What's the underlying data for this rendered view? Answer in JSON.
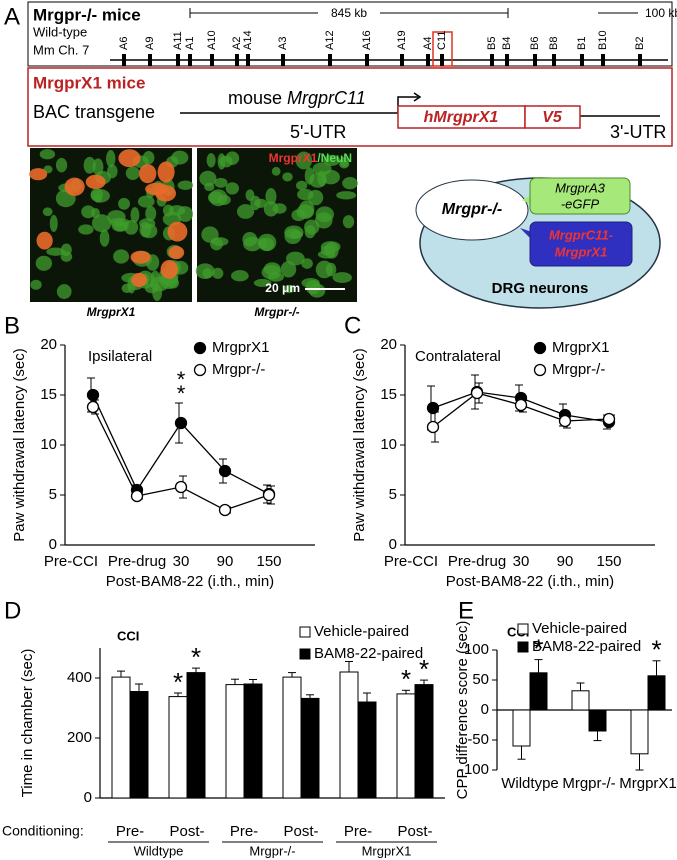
{
  "panel_a": {
    "panel_label": "A",
    "title": "Mrgpr-/-  mice",
    "scale_span": "845 kb",
    "scale_bar": "100 kb",
    "row_labels": [
      "Wild-type",
      "Mm Ch. 7"
    ],
    "genes": [
      "A6",
      "A9",
      "A11",
      "A1",
      "A10",
      "A2",
      "A14",
      "A3",
      "A12",
      "A16",
      "A19",
      "A4",
      "C11",
      "B5",
      "B4",
      "B6",
      "B8",
      "B1",
      "B10",
      "B2"
    ],
    "transgene": {
      "title": "MrgprX1  mice",
      "construct": "BAC transgene",
      "promoter_prefix": "mouse",
      "promoter_gene": "MrgprC11",
      "utr5": "5'-UTR",
      "insert": "hMrgprX1",
      "tag": "V5",
      "utr3": "3'-UTR"
    },
    "images": {
      "stain_red": "MrgprX1",
      "stain_green": "/NeuN",
      "scale": "20 μm",
      "captions": [
        "MrgprX1",
        "Mrgpr-/-"
      ]
    },
    "diagram": {
      "mouse": "Mrgpr-/-",
      "green": [
        "MrgprA3",
        "-eGFP"
      ],
      "blue": [
        "MrgprC11-",
        "MrgprX1"
      ],
      "cell": "DRG neurons"
    }
  },
  "chart_data": [
    {
      "type": "line",
      "panel_label": "B",
      "subtitle": "Ipsilateral",
      "categories": [
        "Pre-CCI",
        "Pre-drug",
        "30",
        "90",
        "150"
      ],
      "xlabel": "Post-BAM8-22 (i.th., min)",
      "ylabel": "Paw withdrawal latency (sec)",
      "ylim": [
        0,
        20
      ],
      "yticks": [
        0,
        5,
        10,
        15,
        20
      ],
      "series": [
        {
          "name": "MrgprX1",
          "color": "#000000",
          "marker": "filled",
          "values": [
            15.0,
            5.5,
            12.2,
            7.4,
            5.1
          ],
          "errors": [
            1.7,
            0.5,
            2.0,
            1.2,
            0.9
          ]
        },
        {
          "name": "Mrgpr-/-",
          "color": "#000000",
          "marker": "open",
          "values": [
            13.8,
            4.9,
            5.8,
            3.5,
            5.0
          ],
          "errors": [
            0.7,
            0.3,
            1.1,
            0.3,
            0.9
          ]
        }
      ],
      "annotations": [
        "*",
        "*"
      ]
    },
    {
      "type": "line",
      "panel_label": "C",
      "subtitle": "Contralateral",
      "categories": [
        "Pre-CCI",
        "Pre-drug",
        "30",
        "90",
        "150"
      ],
      "xlabel": "Post-BAM8-22 (i.th., min)",
      "ylabel": "Paw withdrawal latency (sec)",
      "ylim": [
        0,
        20
      ],
      "yticks": [
        0,
        5,
        10,
        15,
        20
      ],
      "series": [
        {
          "name": "MrgprX1",
          "color": "#000000",
          "marker": "filled",
          "values": [
            13.7,
            15.3,
            14.7,
            13.0,
            12.3
          ],
          "errors": [
            2.2,
            1.7,
            1.3,
            1.1,
            0.7
          ]
        },
        {
          "name": "Mrgpr-/-",
          "color": "#000000",
          "marker": "open",
          "values": [
            11.8,
            15.2,
            14.0,
            12.4,
            12.6
          ],
          "errors": [
            1.5,
            1.0,
            0.7,
            0.7,
            0.4
          ]
        }
      ]
    },
    {
      "type": "bar",
      "panel_label": "D",
      "title": "CCI",
      "category_label": "Conditioning:",
      "categories": [
        "Pre-",
        "Post-",
        "Pre-",
        "Post-",
        "Pre-",
        "Post-"
      ],
      "groups": [
        "Wildtype",
        "Mrgpr-/-",
        "MrgprX1"
      ],
      "ylabel": "Time in chamber (sec)",
      "ylim": [
        0,
        500
      ],
      "yticks": [
        0,
        200,
        400
      ],
      "series": [
        {
          "name": "Vehicle-paired",
          "color": "#ffffff",
          "values": [
            403,
            338,
            378,
            403,
            420,
            347
          ],
          "errors": [
            20,
            12,
            18,
            15,
            35,
            12
          ],
          "significance": [
            null,
            "*",
            null,
            null,
            null,
            "*"
          ]
        },
        {
          "name": "BAM8-22-paired",
          "color": "#000000",
          "values": [
            355,
            418,
            380,
            332,
            320,
            378
          ],
          "errors": [
            25,
            15,
            15,
            12,
            30,
            15
          ],
          "significance": [
            null,
            "*",
            null,
            null,
            null,
            "*"
          ]
        }
      ]
    },
    {
      "type": "bar",
      "panel_label": "E",
      "title": "CCI",
      "categories": [
        "Wildtype",
        "Mrgpr-/-",
        "MrgprX1"
      ],
      "ylabel": "CPP difference score (sec)",
      "ylim": [
        -100,
        100
      ],
      "yticks": [
        -100,
        -50,
        0,
        50,
        100
      ],
      "series": [
        {
          "name": "Vehicle-paired",
          "color": "#ffffff",
          "values": [
            -60,
            32,
            -73
          ],
          "errors": [
            22,
            13,
            27
          ],
          "significance": [
            null,
            null,
            null
          ]
        },
        {
          "name": "BAM8-22-paired",
          "color": "#000000",
          "values": [
            62,
            -35,
            57
          ],
          "errors": [
            22,
            16,
            25
          ],
          "significance": [
            "*",
            null,
            "*"
          ]
        }
      ]
    }
  ]
}
